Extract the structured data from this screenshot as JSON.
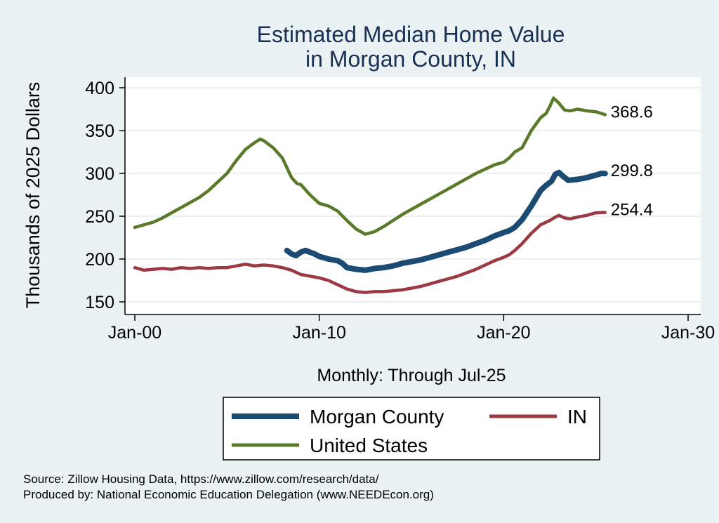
{
  "chart_data": {
    "type": "line",
    "title": [
      "Estimated Median Home Value",
      "in Morgan County, IN"
    ],
    "ylabel": "Thousands of 2025 Dollars",
    "xlabel": "Monthly: Through Jul-25",
    "y_ticks": [
      150,
      200,
      250,
      300,
      350,
      400
    ],
    "x_ticks": [
      {
        "label": "Jan-00",
        "value": 2000
      },
      {
        "label": "Jan-10",
        "value": 2010
      },
      {
        "label": "Jan-20",
        "value": 2020
      },
      {
        "label": "Jan-30",
        "value": 2030
      }
    ],
    "xlim": [
      2000,
      2030
    ],
    "ylim": [
      150,
      400
    ],
    "grid": true,
    "legend_position": "bottom",
    "series": [
      {
        "name": "Morgan County",
        "color": "#1b4a72",
        "end_label": "299.8",
        "points": [
          [
            2008.25,
            210
          ],
          [
            2008.5,
            206
          ],
          [
            2008.75,
            204
          ],
          [
            2009.0,
            208
          ],
          [
            2009.25,
            210
          ],
          [
            2009.5,
            208
          ],
          [
            2009.75,
            206
          ],
          [
            2010.0,
            203
          ],
          [
            2010.5,
            200
          ],
          [
            2011.0,
            198
          ],
          [
            2011.25,
            195
          ],
          [
            2011.5,
            190
          ],
          [
            2012.0,
            188
          ],
          [
            2012.5,
            187
          ],
          [
            2013.0,
            189
          ],
          [
            2013.5,
            190
          ],
          [
            2014.0,
            192
          ],
          [
            2014.5,
            195
          ],
          [
            2015.0,
            197
          ],
          [
            2015.5,
            199
          ],
          [
            2016.0,
            202
          ],
          [
            2016.5,
            205
          ],
          [
            2017.0,
            208
          ],
          [
            2017.5,
            211
          ],
          [
            2018.0,
            214
          ],
          [
            2018.5,
            218
          ],
          [
            2019.0,
            222
          ],
          [
            2019.5,
            227
          ],
          [
            2020.0,
            231
          ],
          [
            2020.3,
            233
          ],
          [
            2020.6,
            237
          ],
          [
            2021.0,
            246
          ],
          [
            2021.5,
            262
          ],
          [
            2022.0,
            280
          ],
          [
            2022.3,
            286
          ],
          [
            2022.6,
            291
          ],
          [
            2022.8,
            299
          ],
          [
            2023.0,
            301
          ],
          [
            2023.2,
            297
          ],
          [
            2023.5,
            292
          ],
          [
            2024.0,
            293
          ],
          [
            2024.5,
            295
          ],
          [
            2025.0,
            298
          ],
          [
            2025.3,
            300
          ],
          [
            2025.5,
            299.8
          ]
        ]
      },
      {
        "name": "IN",
        "color": "#9b3a42",
        "end_label": "254.4",
        "points": [
          [
            2000.0,
            190
          ],
          [
            2000.5,
            187
          ],
          [
            2001.0,
            188
          ],
          [
            2001.5,
            189
          ],
          [
            2002.0,
            188
          ],
          [
            2002.5,
            190
          ],
          [
            2003.0,
            189
          ],
          [
            2003.5,
            190
          ],
          [
            2004.0,
            189
          ],
          [
            2004.5,
            190
          ],
          [
            2005.0,
            190
          ],
          [
            2005.5,
            192
          ],
          [
            2006.0,
            194
          ],
          [
            2006.5,
            192
          ],
          [
            2007.0,
            193
          ],
          [
            2007.5,
            192
          ],
          [
            2008.0,
            190
          ],
          [
            2008.5,
            187
          ],
          [
            2009.0,
            182
          ],
          [
            2009.5,
            180
          ],
          [
            2010.0,
            178
          ],
          [
            2010.5,
            175
          ],
          [
            2011.0,
            170
          ],
          [
            2011.5,
            165
          ],
          [
            2012.0,
            162
          ],
          [
            2012.5,
            161
          ],
          [
            2013.0,
            162
          ],
          [
            2013.5,
            162
          ],
          [
            2014.0,
            163
          ],
          [
            2014.5,
            164
          ],
          [
            2015.0,
            166
          ],
          [
            2015.5,
            168
          ],
          [
            2016.0,
            171
          ],
          [
            2016.5,
            174
          ],
          [
            2017.0,
            177
          ],
          [
            2017.5,
            180
          ],
          [
            2018.0,
            184
          ],
          [
            2018.5,
            188
          ],
          [
            2019.0,
            193
          ],
          [
            2019.5,
            198
          ],
          [
            2020.0,
            202
          ],
          [
            2020.3,
            205
          ],
          [
            2020.6,
            210
          ],
          [
            2021.0,
            218
          ],
          [
            2021.5,
            230
          ],
          [
            2022.0,
            240
          ],
          [
            2022.5,
            245
          ],
          [
            2022.8,
            249
          ],
          [
            2023.0,
            251
          ],
          [
            2023.3,
            248
          ],
          [
            2023.6,
            247
          ],
          [
            2024.0,
            249
          ],
          [
            2024.5,
            251
          ],
          [
            2025.0,
            254
          ],
          [
            2025.5,
            254.4
          ]
        ]
      },
      {
        "name": "United States",
        "color": "#5a7a2a",
        "end_label": "368.6",
        "points": [
          [
            2000.0,
            237
          ],
          [
            2000.5,
            240
          ],
          [
            2001.0,
            243
          ],
          [
            2001.5,
            248
          ],
          [
            2002.0,
            254
          ],
          [
            2002.5,
            260
          ],
          [
            2003.0,
            266
          ],
          [
            2003.5,
            272
          ],
          [
            2004.0,
            280
          ],
          [
            2004.5,
            290
          ],
          [
            2005.0,
            300
          ],
          [
            2005.5,
            315
          ],
          [
            2006.0,
            328
          ],
          [
            2006.5,
            336
          ],
          [
            2006.8,
            340
          ],
          [
            2007.0,
            338
          ],
          [
            2007.5,
            330
          ],
          [
            2008.0,
            318
          ],
          [
            2008.5,
            295
          ],
          [
            2008.8,
            288
          ],
          [
            2009.0,
            287
          ],
          [
            2009.5,
            275
          ],
          [
            2010.0,
            265
          ],
          [
            2010.5,
            262
          ],
          [
            2011.0,
            256
          ],
          [
            2011.5,
            245
          ],
          [
            2012.0,
            235
          ],
          [
            2012.5,
            229
          ],
          [
            2013.0,
            232
          ],
          [
            2013.5,
            238
          ],
          [
            2014.0,
            245
          ],
          [
            2014.5,
            252
          ],
          [
            2015.0,
            258
          ],
          [
            2015.5,
            264
          ],
          [
            2016.0,
            270
          ],
          [
            2016.5,
            276
          ],
          [
            2017.0,
            282
          ],
          [
            2017.5,
            288
          ],
          [
            2018.0,
            294
          ],
          [
            2018.5,
            300
          ],
          [
            2019.0,
            305
          ],
          [
            2019.5,
            310
          ],
          [
            2020.0,
            313
          ],
          [
            2020.3,
            318
          ],
          [
            2020.6,
            325
          ],
          [
            2021.0,
            330
          ],
          [
            2021.5,
            350
          ],
          [
            2022.0,
            365
          ],
          [
            2022.3,
            370
          ],
          [
            2022.5,
            378
          ],
          [
            2022.7,
            388
          ],
          [
            2023.0,
            382
          ],
          [
            2023.3,
            374
          ],
          [
            2023.6,
            373
          ],
          [
            2024.0,
            375
          ],
          [
            2024.5,
            373
          ],
          [
            2025.0,
            372
          ],
          [
            2025.3,
            370
          ],
          [
            2025.5,
            368.6
          ]
        ]
      }
    ],
    "legend": [
      {
        "label": "Morgan County",
        "color": "#1b4a72"
      },
      {
        "label": "IN",
        "color": "#9b3a42"
      },
      {
        "label": "United States",
        "color": "#5a7a2a"
      }
    ]
  },
  "source": {
    "line1": "Source: Zillow Housing Data, https://www.zillow.com/research/data/",
    "line2": "Produced by: National Economic Education Delegation (www.NEEDEcon.org)"
  }
}
